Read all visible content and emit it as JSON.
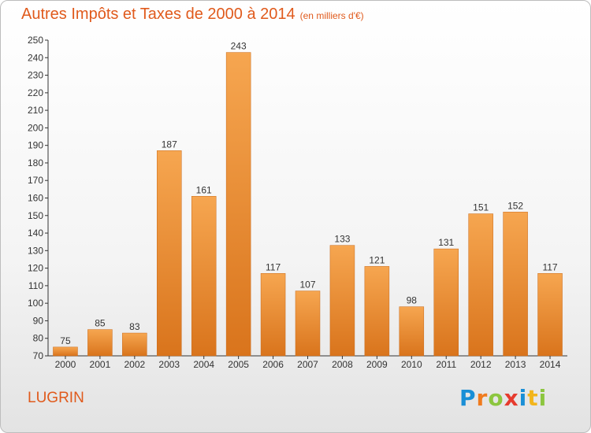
{
  "header": {
    "title": "Autres Impôts et Taxes de 2000 à 2014",
    "subtitle": "(en milliers d'€)"
  },
  "footer": {
    "town": "LUGRIN",
    "logo": {
      "p": "P",
      "r": "r",
      "o": "o",
      "x": "x",
      "i1": "i",
      "t": "t",
      "i2": "i"
    }
  },
  "colors": {
    "bar_top": "#f6a650",
    "bar_bottom": "#d9741c",
    "title": "#e05a1c"
  },
  "chart_data": {
    "type": "bar",
    "title": "Autres Impôts et Taxes de 2000 à 2014",
    "subtitle": "(en milliers d'€)",
    "categories": [
      "2000",
      "2001",
      "2002",
      "2003",
      "2004",
      "2005",
      "2006",
      "2007",
      "2008",
      "2009",
      "2010",
      "2011",
      "2012",
      "2013",
      "2014"
    ],
    "values": [
      75,
      85,
      83,
      187,
      161,
      243,
      117,
      107,
      133,
      121,
      98,
      131,
      151,
      152,
      117
    ],
    "ylim": [
      70,
      250
    ],
    "yticks": [
      70,
      80,
      90,
      100,
      110,
      120,
      130,
      140,
      150,
      160,
      170,
      180,
      190,
      200,
      210,
      220,
      230,
      240,
      250
    ],
    "grid": false,
    "data_labels": true
  }
}
